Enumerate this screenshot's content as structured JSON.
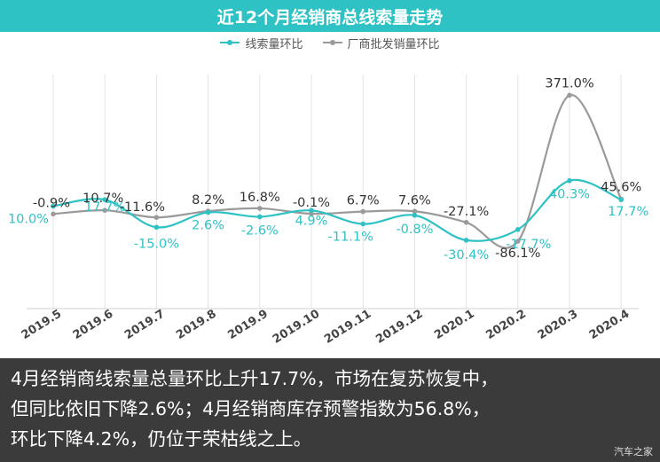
{
  "title": "近12个月经销商总线索量走势",
  "colors": {
    "series1": "#2fc2c4",
    "series2": "#9a9a9a",
    "title_bg": "#2fc2c4",
    "caption_bg": "#3b3b3b"
  },
  "chart_data": {
    "type": "line",
    "title": "近12个月经销商总线索量走势",
    "categories": [
      "2019.5",
      "2019.6",
      "2019.7",
      "2019.8",
      "2019.9",
      "2019.10",
      "2019.11",
      "2019.12",
      "2020.1",
      "2020.2",
      "2020.3",
      "2020.4"
    ],
    "series": [
      {
        "name": "线索量环比",
        "values": [
          10.0,
          17.7,
          -15.0,
          2.6,
          -2.6,
          4.9,
          -11.1,
          -0.8,
          -30.4,
          -17.7,
          40.3,
          17.7
        ],
        "labels": [
          "10.0%",
          "17.7%",
          "-15.0%",
          "2.6%",
          "-2.6%",
          "4.9%",
          "-11.1%",
          "-0.8%",
          "-30.4%",
          "-17.7%",
          "40.3%",
          "17.7%"
        ]
      },
      {
        "name": "厂商批发销量环比",
        "values": [
          -0.9,
          10.7,
          -11.6,
          8.2,
          16.8,
          -0.1,
          6.7,
          7.6,
          -27.1,
          -86.1,
          371.0,
          45.6
        ],
        "labels": [
          "-0.9%",
          "10.7%",
          "-11.6%",
          "8.2%",
          "16.8%",
          "-0.1%",
          "6.7%",
          "7.6%",
          "-27.1%",
          "-86.1%",
          "371.0%",
          "45.6%"
        ]
      }
    ],
    "grid": "vertical",
    "legend": "top-center"
  },
  "caption": {
    "lines": [
      "4月经销商线索量总量环比上升17.7%，市场在复苏恢复中，",
      "但同比依旧下降2.6%；4月经销商库存预警指数为56.8%，",
      "环比下降4.2%，仍位于荣枯线之上。"
    ]
  },
  "watermark": "汽车之家"
}
